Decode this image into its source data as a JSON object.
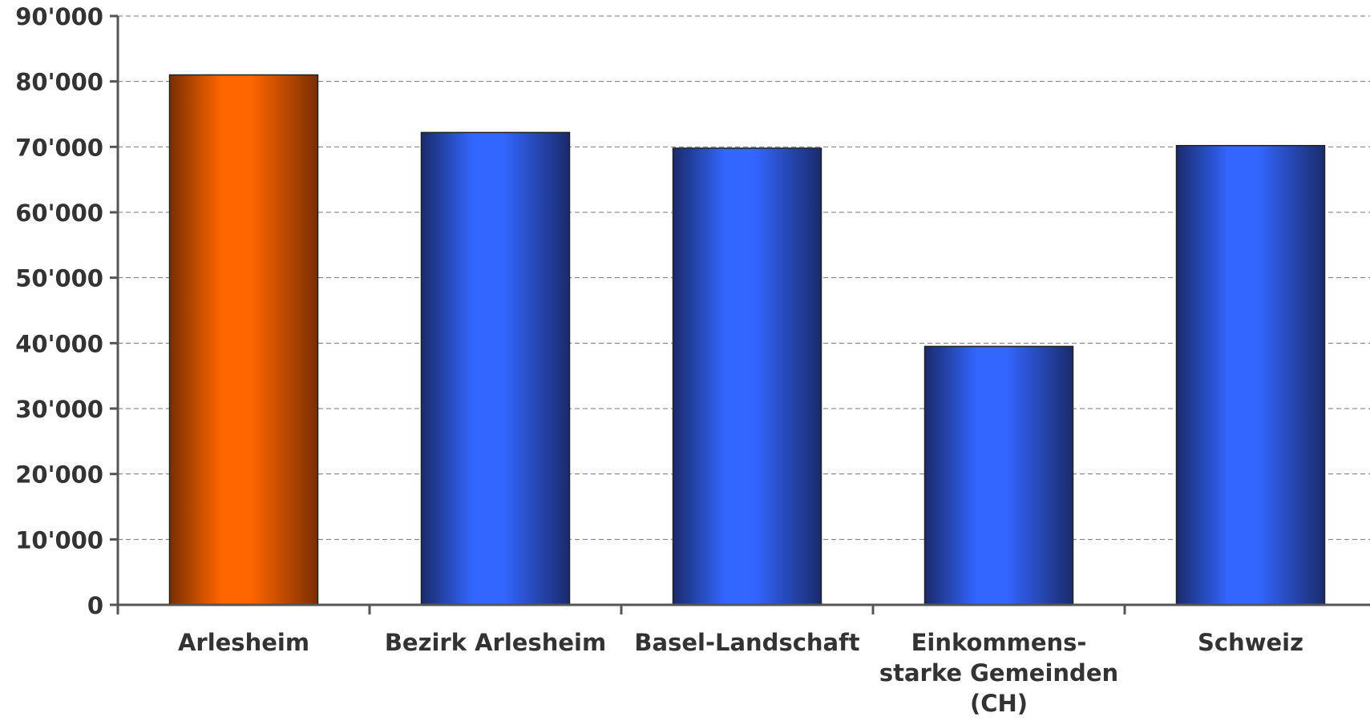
{
  "chart_data": {
    "type": "bar",
    "categories": [
      [
        "Arlesheim"
      ],
      [
        "Bezirk Arlesheim"
      ],
      [
        "Basel-Landschaft"
      ],
      [
        "Einkommens-",
        "starke Gemeinden",
        "(CH)"
      ],
      [
        "Schweiz"
      ]
    ],
    "values": [
      81000,
      72200,
      69800,
      39500,
      70200
    ],
    "bar_colors": [
      "#FF6600",
      "#3366FF",
      "#3366FF",
      "#3366FF",
      "#3366FF"
    ],
    "bar_edge_colors": [
      "#7A2E00",
      "#1A2B6B",
      "#1A2B6B",
      "#1A2B6B",
      "#1A2B6B"
    ],
    "y_ticks": [
      0,
      10000,
      20000,
      30000,
      40000,
      50000,
      60000,
      70000,
      80000,
      90000
    ],
    "y_tick_labels": [
      "0",
      "10'000",
      "20'000",
      "30'000",
      "40'000",
      "50'000",
      "60'000",
      "70'000",
      "80'000",
      "90'000"
    ],
    "ylim": [
      0,
      90000
    ],
    "title": "",
    "xlabel": "",
    "ylabel": "",
    "grid": true,
    "legend": false
  }
}
